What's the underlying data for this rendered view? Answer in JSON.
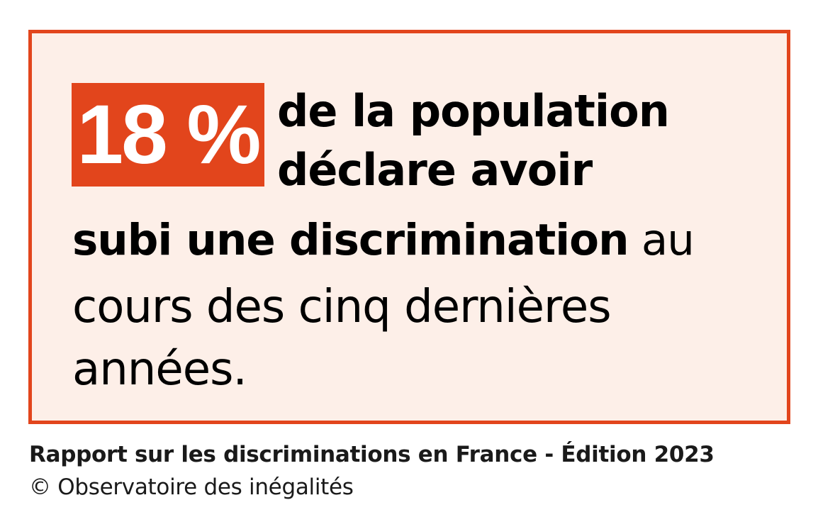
{
  "card": {
    "stat": "18 %",
    "line1": "de la population",
    "line2": "déclare avoir",
    "line3_bold": "subi une discrimination",
    "line3_rest": " au",
    "line4": "cours des cinq dernières",
    "line5": "années."
  },
  "footer": {
    "source": "Rapport sur les discriminations en France - Édition 2023",
    "credit": "© Observatoire des inégalités"
  },
  "colors": {
    "accent": "#e2451c",
    "card_background": "#fdefe8",
    "text": "#000000"
  }
}
